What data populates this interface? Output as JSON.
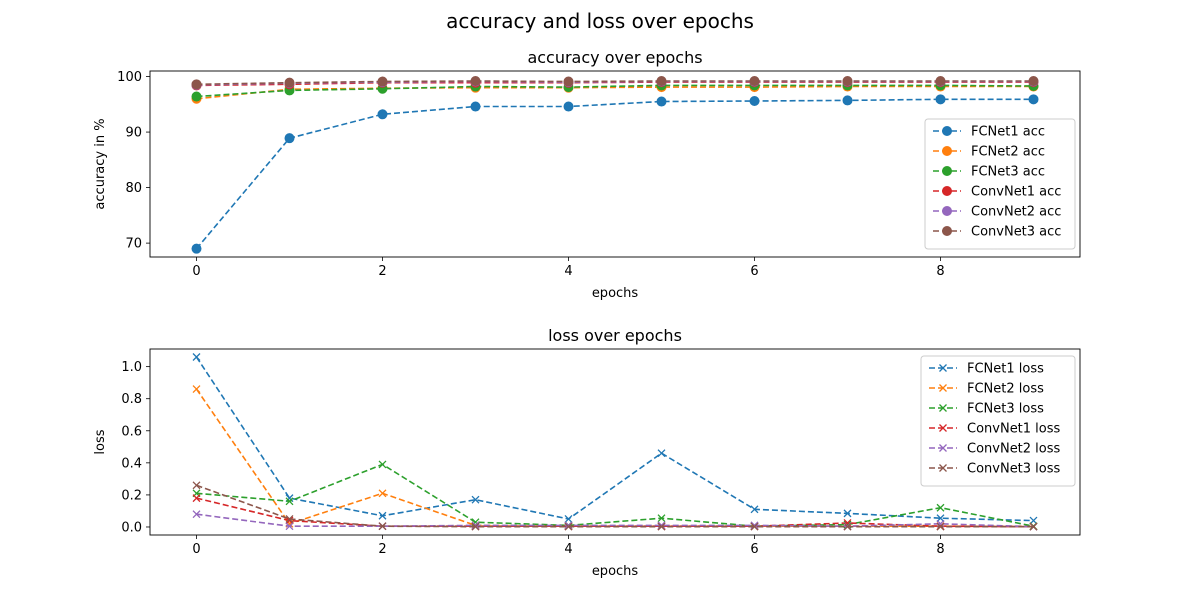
{
  "figure_title": "accuracy and loss over epochs",
  "chart_data": [
    {
      "type": "line",
      "title": "accuracy over epochs",
      "xlabel": "epochs",
      "ylabel": "accuracy in %",
      "xlim": [
        -0.5,
        9.5
      ],
      "ylim": [
        67.5,
        101.0
      ],
      "xticks": [
        0,
        2,
        4,
        6,
        8
      ],
      "yticks": [
        70,
        80,
        90,
        100
      ],
      "marker": "circle",
      "linestyle": "dashed",
      "legend": "center-right",
      "x": [
        0,
        1,
        2,
        3,
        4,
        5,
        6,
        7,
        8,
        9
      ],
      "series": [
        {
          "name": "FCNet1 acc",
          "color": "#1f77b4",
          "values": [
            69.0,
            88.9,
            93.2,
            94.6,
            94.6,
            95.5,
            95.6,
            95.7,
            95.9,
            95.9
          ]
        },
        {
          "name": "FCNet2 acc",
          "color": "#ff7f0e",
          "values": [
            96.0,
            97.7,
            97.9,
            98.0,
            98.0,
            98.1,
            98.1,
            98.2,
            98.2,
            98.2
          ]
        },
        {
          "name": "FCNet3 acc",
          "color": "#2ca02c",
          "values": [
            96.4,
            97.5,
            97.8,
            98.2,
            98.1,
            98.4,
            98.4,
            98.4,
            98.4,
            98.3
          ]
        },
        {
          "name": "ConvNet1 acc",
          "color": "#d62728",
          "values": [
            98.4,
            98.6,
            98.9,
            98.9,
            98.9,
            99.0,
            99.0,
            99.0,
            99.0,
            99.0
          ]
        },
        {
          "name": "ConvNet2 acc",
          "color": "#9467bd",
          "values": [
            98.5,
            98.8,
            99.0,
            99.1,
            99.0,
            99.1,
            99.1,
            99.1,
            99.1,
            99.1
          ]
        },
        {
          "name": "ConvNet3 acc",
          "color": "#8c564b",
          "values": [
            98.6,
            98.9,
            99.1,
            99.2,
            99.1,
            99.2,
            99.2,
            99.2,
            99.2,
            99.2
          ]
        }
      ]
    },
    {
      "type": "line",
      "title": "loss over epochs",
      "xlabel": "epochs",
      "ylabel": "loss",
      "xlim": [
        -0.5,
        9.5
      ],
      "ylim": [
        -0.05,
        1.11
      ],
      "xticks": [
        0,
        2,
        4,
        6,
        8
      ],
      "yticks": [
        0.0,
        0.2,
        0.4,
        0.6,
        0.8,
        1.0
      ],
      "marker": "x",
      "linestyle": "dashed",
      "legend": "top-right",
      "x": [
        0,
        1,
        2,
        3,
        4,
        5,
        6,
        7,
        8,
        9
      ],
      "series": [
        {
          "name": "FCNet1 loss",
          "color": "#1f77b4",
          "values": [
            1.06,
            0.18,
            0.07,
            0.17,
            0.05,
            0.46,
            0.11,
            0.085,
            0.055,
            0.04
          ]
        },
        {
          "name": "FCNet2 loss",
          "color": "#ff7f0e",
          "values": [
            0.86,
            0.02,
            0.21,
            0.01,
            0.005,
            0.005,
            0.005,
            0.005,
            0.005,
            0.005
          ]
        },
        {
          "name": "FCNet3 loss",
          "color": "#2ca02c",
          "values": [
            0.21,
            0.16,
            0.39,
            0.03,
            0.01,
            0.055,
            0.005,
            0.015,
            0.12,
            0.005
          ]
        },
        {
          "name": "ConvNet1 loss",
          "color": "#d62728",
          "values": [
            0.18,
            0.04,
            0.005,
            0.005,
            0.005,
            0.005,
            0.005,
            0.025,
            0.005,
            0.002
          ]
        },
        {
          "name": "ConvNet2 loss",
          "color": "#9467bd",
          "values": [
            0.08,
            0.005,
            0.005,
            0.01,
            0.01,
            0.01,
            0.01,
            0.005,
            0.02,
            0.002
          ]
        },
        {
          "name": "ConvNet3 loss",
          "color": "#8c564b",
          "values": [
            0.26,
            0.05,
            0.005,
            0.002,
            0.002,
            0.002,
            0.002,
            0.002,
            0.002,
            0.002
          ]
        }
      ]
    }
  ]
}
